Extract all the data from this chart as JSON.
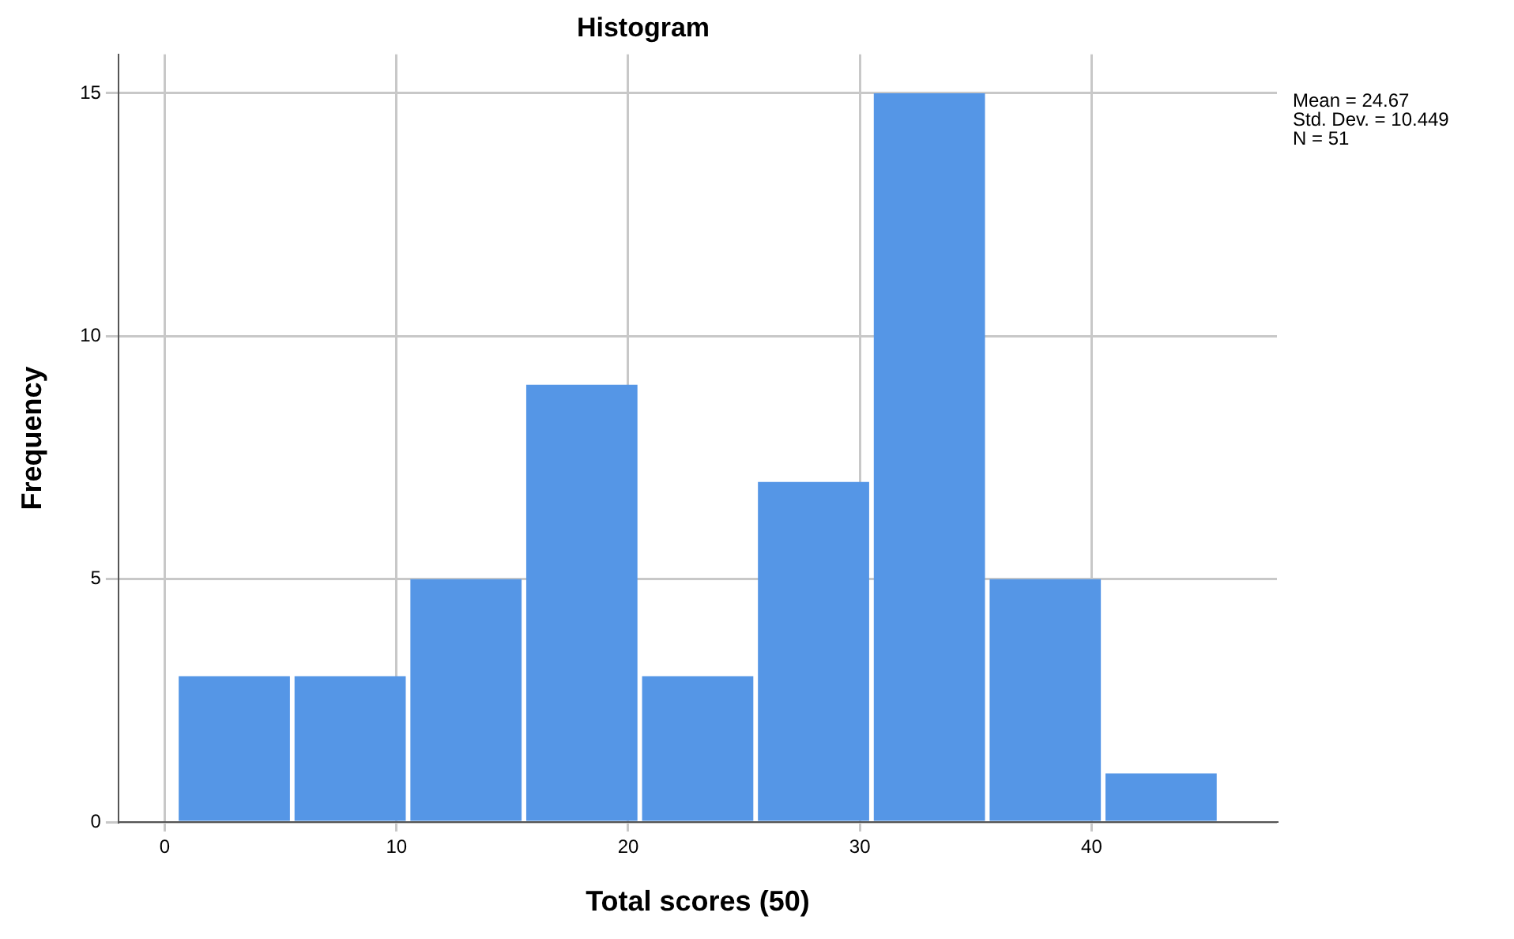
{
  "chart_data": {
    "type": "histogram",
    "title": "Histogram",
    "xlabel": "Total scores (50)",
    "ylabel": "Frequency",
    "bins": [
      0.5,
      5.5,
      10.5,
      15.5,
      20.5,
      25.5,
      30.5,
      35.5,
      40.5,
      45.5
    ],
    "values": [
      3,
      3,
      5,
      9,
      3,
      7,
      15,
      5,
      1
    ],
    "color": "#5596e6",
    "xlim": [
      -2,
      48
    ],
    "xticks": [
      0,
      10,
      20,
      30,
      40
    ],
    "ylim": [
      0,
      15.8
    ],
    "yticks": [
      0,
      5,
      10,
      15
    ],
    "grid": true,
    "annotations": [
      "Mean = 24.67",
      "Std. Dev. = 10.449",
      "N = 51"
    ]
  }
}
